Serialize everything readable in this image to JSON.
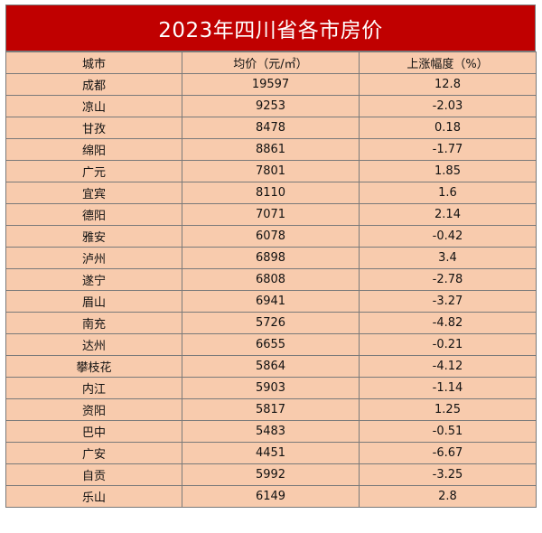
{
  "chart_data": {
    "type": "table",
    "title": "2023年四川省各市房价",
    "columns": [
      "城市",
      "均价（元/㎡）",
      "上涨幅度（%）"
    ],
    "rows": [
      [
        "成都",
        "19597",
        "12.8"
      ],
      [
        "凉山",
        "9253",
        "-2.03"
      ],
      [
        "甘孜",
        "8478",
        "0.18"
      ],
      [
        "绵阳",
        "8861",
        "-1.77"
      ],
      [
        "广元",
        "7801",
        "1.85"
      ],
      [
        "宜宾",
        "8110",
        "1.6"
      ],
      [
        "德阳",
        "7071",
        "2.14"
      ],
      [
        "雅安",
        "6078",
        "-0.42"
      ],
      [
        "泸州",
        "6898",
        "3.4"
      ],
      [
        "遂宁",
        "6808",
        "-2.78"
      ],
      [
        "眉山",
        "6941",
        "-3.27"
      ],
      [
        "南充",
        "5726",
        "-4.82"
      ],
      [
        "达州",
        "6655",
        "-0.21"
      ],
      [
        "攀枝花",
        "5864",
        "-4.12"
      ],
      [
        "内江",
        "5903",
        "-1.14"
      ],
      [
        "资阳",
        "5817",
        "1.25"
      ],
      [
        "巴中",
        "5483",
        "-0.51"
      ],
      [
        "广安",
        "4451",
        "-6.67"
      ],
      [
        "自贡",
        "5992",
        "-3.25"
      ],
      [
        "乐山",
        "6149",
        "2.8"
      ]
    ],
    "colors": {
      "title_bg": "#c00000",
      "cell_bg": "#f8cbad",
      "border": "#7a7a7a"
    }
  }
}
